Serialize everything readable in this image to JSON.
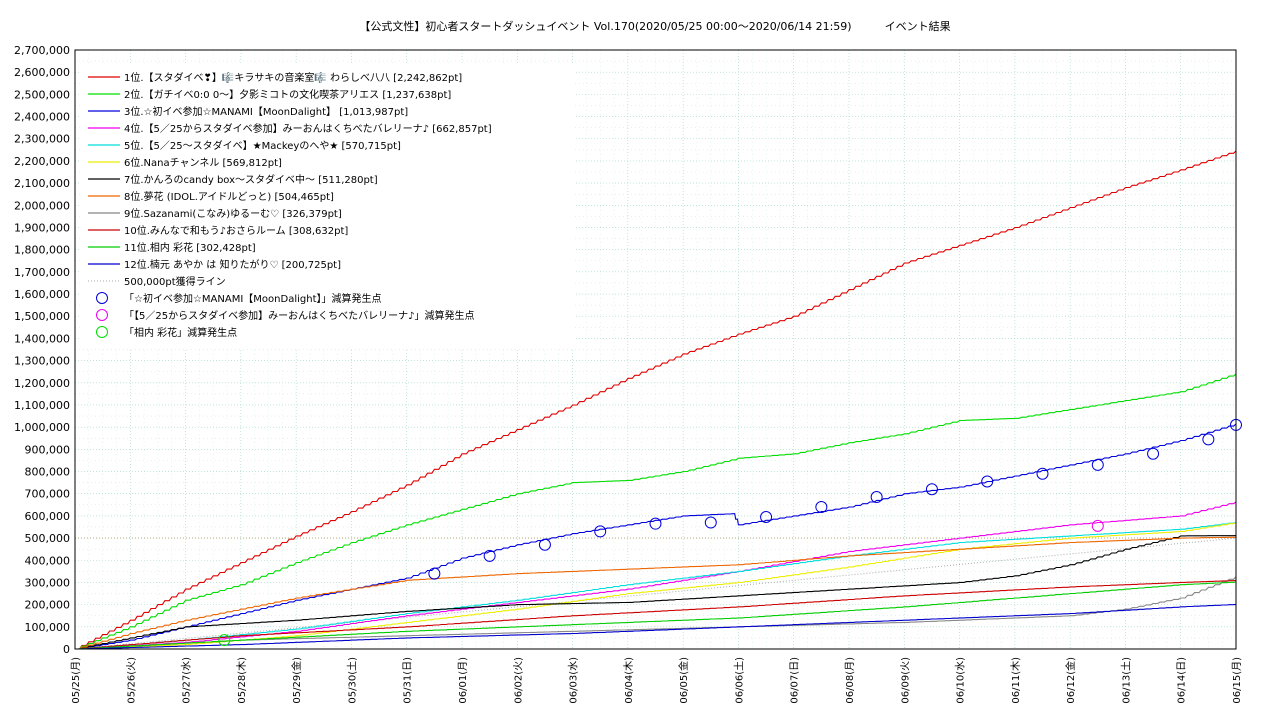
{
  "chart_data": {
    "type": "line",
    "title": "【公式文性】初心者スタートダッシュイベント Vol.170(2020/05/25 00:00〜2020/06/14 21:59)　　　イベント結果",
    "xlabel": "",
    "ylabel": "",
    "ylim": [
      0,
      2700000
    ],
    "xlim": [
      "2020-05-25",
      "2020-06-15"
    ],
    "y_ticks": [
      "0",
      "100,000",
      "200,000",
      "300,000",
      "400,000",
      "500,000",
      "600,000",
      "700,000",
      "800,000",
      "900,000",
      "1,000,000",
      "1,100,000",
      "1,200,000",
      "1,300,000",
      "1,400,000",
      "1,500,000",
      "1,600,000",
      "1,700,000",
      "1,800,000",
      "1,900,000",
      "2,000,000",
      "2,100,000",
      "2,200,000",
      "2,300,000",
      "2,400,000",
      "2,500,000",
      "2,600,000",
      "2,700,000"
    ],
    "x_ticks": [
      "05/25(月)",
      "05/26(火)",
      "05/27(水)",
      "05/28(木)",
      "05/29(金)",
      "05/30(土)",
      "05/31(日)",
      "06/01(月)",
      "06/02(火)",
      "06/03(水)",
      "06/04(木)",
      "06/05(金)",
      "06/06(土)",
      "06/07(日)",
      "06/08(月)",
      "06/09(火)",
      "06/10(水)",
      "06/11(木)",
      "06/12(金)",
      "06/13(土)",
      "06/14(日)",
      "06/15(月)"
    ],
    "grid": true,
    "legend_position": "top-left",
    "x_day_offsets_note": "",
    "series": [
      {
        "name": "1位.【スタダイベ❣】🎼キラサキの音楽室🎼 わらしべ八八 [2,242,862pt]",
        "color": "#e00000",
        "x": [
          "2020-05-25",
          "2020-05-26",
          "2020-05-27",
          "2020-05-28",
          "2020-05-29",
          "2020-05-30",
          "2020-05-31",
          "2020-06-01",
          "2020-06-02",
          "2020-06-03",
          "2020-06-04",
          "2020-06-05",
          "2020-06-06",
          "2020-06-07",
          "2020-06-08",
          "2020-06-09",
          "2020-06-10",
          "2020-06-11",
          "2020-06-12",
          "2020-06-13",
          "2020-06-14",
          "2020-06-15"
        ],
        "values": [
          0,
          130000,
          270000,
          390000,
          510000,
          620000,
          740000,
          880000,
          990000,
          1100000,
          1220000,
          1330000,
          1420000,
          1500000,
          1620000,
          1740000,
          1820000,
          1900000,
          1990000,
          2080000,
          2160000,
          2245000
        ]
      },
      {
        "name": "2位.【ガチイベ0:0 0〜】夕影ミコトの文化喫茶アリエス [1,237,638pt]",
        "color": "#00dd00",
        "x": [
          "2020-05-25",
          "2020-05-26",
          "2020-05-27",
          "2020-05-28",
          "2020-05-29",
          "2020-05-30",
          "2020-05-31",
          "2020-06-01",
          "2020-06-02",
          "2020-06-03",
          "2020-06-04",
          "2020-06-05",
          "2020-06-06",
          "2020-06-07",
          "2020-06-08",
          "2020-06-09",
          "2020-06-10",
          "2020-06-11",
          "2020-06-12",
          "2020-06-13",
          "2020-06-14",
          "2020-06-15"
        ],
        "values": [
          0,
          100000,
          220000,
          290000,
          390000,
          480000,
          560000,
          630000,
          700000,
          750000,
          760000,
          800000,
          860000,
          880000,
          930000,
          970000,
          1030000,
          1040000,
          1080000,
          1120000,
          1160000,
          1240000
        ]
      },
      {
        "name": "3位.☆初イベ参加☆MANAMI【MoonDalight】 [1,013,987pt]",
        "color": "#0000dd",
        "x": [
          "2020-05-25",
          "2020-05-26",
          "2020-05-27",
          "2020-05-28",
          "2020-05-29",
          "2020-05-30",
          "2020-05-31",
          "2020-06-01",
          "2020-06-02",
          "2020-06-03",
          "2020-06-04",
          "2020-06-05",
          "2020-06-05.9",
          "2020-06-06",
          "2020-06-07",
          "2020-06-08",
          "2020-06-09",
          "2020-06-10",
          "2020-06-11",
          "2020-06-12",
          "2020-06-13",
          "2020-06-14",
          "2020-06-15"
        ],
        "values": [
          0,
          40000,
          100000,
          160000,
          220000,
          270000,
          320000,
          410000,
          470000,
          520000,
          560000,
          600000,
          610000,
          560000,
          600000,
          640000,
          700000,
          730000,
          780000,
          830000,
          880000,
          940000,
          1014000
        ]
      },
      {
        "name": "4位.【5／25からスタダイベ参加】みーおんはくちべたバレリーナ♪ [662,857pt]",
        "color": "#ee00ee",
        "x": [
          "2020-05-25",
          "2020-05-27",
          "2020-05-29",
          "2020-05-31",
          "2020-06-02",
          "2020-06-04",
          "2020-06-06",
          "2020-06-08",
          "2020-06-10",
          "2020-06-12",
          "2020-06-14",
          "2020-06-15"
        ],
        "values": [
          0,
          30000,
          80000,
          150000,
          210000,
          270000,
          350000,
          440000,
          500000,
          560000,
          600000,
          663000
        ]
      },
      {
        "name": "5位.【5／25〜スタダイベ】★Mackeyのへや★ [570,715pt]",
        "color": "#00dddd",
        "x": [
          "2020-05-25",
          "2020-05-27",
          "2020-05-29",
          "2020-05-31",
          "2020-06-02",
          "2020-06-04",
          "2020-06-06",
          "2020-06-08",
          "2020-06-10",
          "2020-06-12",
          "2020-06-14",
          "2020-06-15"
        ],
        "values": [
          0,
          40000,
          90000,
          160000,
          220000,
          290000,
          350000,
          420000,
          480000,
          510000,
          540000,
          571000
        ]
      },
      {
        "name": "6位.Nanaチャンネル [569,812pt]",
        "color": "#eeee00",
        "x": [
          "2020-05-25",
          "2020-05-27",
          "2020-05-29",
          "2020-05-31",
          "2020-06-02",
          "2020-06-04",
          "2020-06-06",
          "2020-06-08",
          "2020-06-10",
          "2020-06-12",
          "2020-06-14",
          "2020-06-15"
        ],
        "values": [
          0,
          20000,
          60000,
          120000,
          180000,
          250000,
          300000,
          370000,
          450000,
          500000,
          530000,
          570000
        ]
      },
      {
        "name": "7位.かんろのcandy box〜スタダイベ中〜 [511,280pt]",
        "color": "#000000",
        "x": [
          "2020-05-25",
          "2020-05-27",
          "2020-05-29",
          "2020-05-31",
          "2020-06-02",
          "2020-06-04",
          "2020-06-06",
          "2020-06-08",
          "2020-06-10",
          "2020-06-11",
          "2020-06-12",
          "2020-06-13",
          "2020-06-14",
          "2020-06-15"
        ],
        "values": [
          0,
          100000,
          130000,
          170000,
          200000,
          210000,
          240000,
          270000,
          300000,
          330000,
          380000,
          450000,
          510000,
          511000
        ]
      },
      {
        "name": "8位.夢花 (IDOL.アイドルどっと) [504,465pt]",
        "color": "#ee6600",
        "x": [
          "2020-05-25",
          "2020-05-26",
          "2020-05-27",
          "2020-05-28",
          "2020-05-29",
          "2020-05-30",
          "2020-05-31",
          "2020-06-02",
          "2020-06-04",
          "2020-06-06",
          "2020-06-08",
          "2020-06-10",
          "2020-06-12",
          "2020-06-14",
          "2020-06-15"
        ],
        "values": [
          0,
          70000,
          130000,
          180000,
          230000,
          270000,
          310000,
          340000,
          360000,
          380000,
          420000,
          450000,
          480000,
          500000,
          504000
        ]
      },
      {
        "name": "9位.Sazanami(こなみ)ゆるーむ♡ [326,379pt]",
        "color": "#888888",
        "x": [
          "2020-05-25",
          "2020-05-28",
          "2020-05-31",
          "2020-06-03",
          "2020-06-06",
          "2020-06-09",
          "2020-06-12",
          "2020-06-13",
          "2020-06-14",
          "2020-06-15"
        ],
        "values": [
          0,
          40000,
          60000,
          80000,
          100000,
          120000,
          150000,
          180000,
          230000,
          326000
        ]
      },
      {
        "name": "10位.みんなで和もう♪おさらルーム [308,632pt]",
        "color": "#cc0000",
        "x": [
          "2020-05-25",
          "2020-05-28",
          "2020-05-31",
          "2020-06-03",
          "2020-06-06",
          "2020-06-09",
          "2020-06-12",
          "2020-06-14",
          "2020-06-15"
        ],
        "values": [
          0,
          60000,
          100000,
          150000,
          190000,
          240000,
          280000,
          300000,
          309000
        ]
      },
      {
        "name": "11位.相内 彩花 [302,428pt]",
        "color": "#00cc00",
        "x": [
          "2020-05-25",
          "2020-05-28",
          "2020-05-31",
          "2020-06-03",
          "2020-06-06",
          "2020-06-09",
          "2020-06-12",
          "2020-06-14",
          "2020-06-15"
        ],
        "values": [
          0,
          40000,
          80000,
          110000,
          140000,
          190000,
          250000,
          290000,
          302000
        ]
      },
      {
        "name": "12位.楠元 あやか は 知りたがり♡ [200,725pt]",
        "color": "#0000cc",
        "x": [
          "2020-05-25",
          "2020-05-28",
          "2020-05-31",
          "2020-06-03",
          "2020-06-06",
          "2020-06-09",
          "2020-06-12",
          "2020-06-14",
          "2020-06-15"
        ],
        "values": [
          0,
          20000,
          50000,
          70000,
          100000,
          130000,
          160000,
          190000,
          201000
        ]
      }
    ],
    "reference_line": {
      "name": "500,000pt獲得ライン",
      "color": "#aaaaaa",
      "x": [
        "2020-05-25",
        "2020-06-15"
      ],
      "values": [
        0,
        500000
      ]
    },
    "marker_series": [
      {
        "name": "「☆初イベ参加☆MANAMI【MoonDalight】」減算発生点",
        "color": "#0000dd",
        "x": [
          "2020-05-31.5",
          "2020-06-01.5",
          "2020-06-02.5",
          "2020-06-03.5",
          "2020-06-04.5",
          "2020-06-05.5",
          "2020-06-06.5",
          "2020-06-07.5",
          "2020-06-08.5",
          "2020-06-09.5",
          "2020-06-10.5",
          "2020-06-11.5",
          "2020-06-12.5",
          "2020-06-13.5",
          "2020-06-14.5",
          "2020-06-15"
        ],
        "values": [
          340000,
          420000,
          470000,
          530000,
          565000,
          570000,
          595000,
          640000,
          685000,
          720000,
          755000,
          790000,
          830000,
          880000,
          945000,
          1010000
        ]
      },
      {
        "name": "「【5／25からスタダイベ参加】みーおんはくちべたバレリーナ♪」減算発生点",
        "color": "#ee00ee",
        "x": [
          "2020-06-12.5"
        ],
        "values": [
          555000
        ]
      },
      {
        "name": "「相内 彩花」減算発生点",
        "color": "#00dd00",
        "x": [
          "2020-05-27.7"
        ],
        "values": [
          40000
        ]
      }
    ]
  }
}
